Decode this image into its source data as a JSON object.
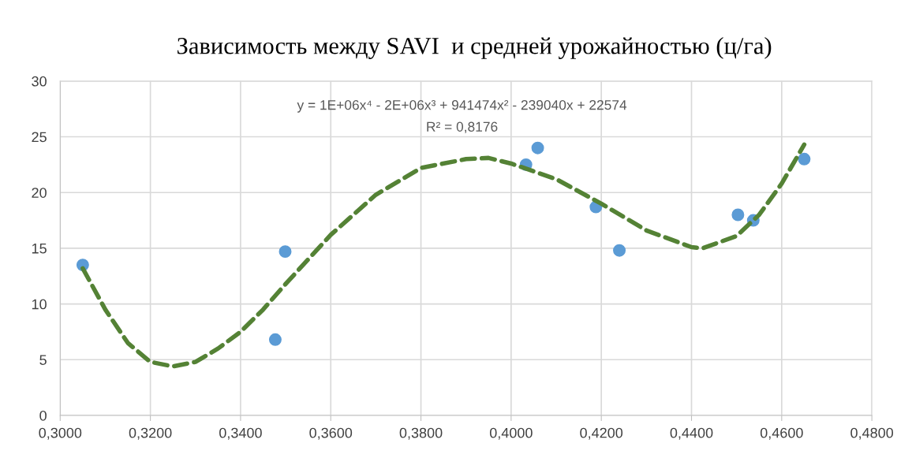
{
  "chart_data": {
    "type": "scatter",
    "title": "Зависимость между SAVI  и средней урожайностью (ц/га)",
    "annotations": [
      "y = 1E+06x⁴ - 2E+06x³ + 941474x² - 239040x + 22574",
      "R² = 0,8176"
    ],
    "series": [
      {
        "color": "#5b9bd5",
        "marker": "circle",
        "x": [
          0.305,
          0.3499,
          0.3477,
          0.4033,
          0.4059,
          0.4188,
          0.424,
          0.4503,
          0.4537,
          0.465
        ],
        "values": [
          13.5,
          14.7,
          6.8,
          22.5,
          24.0,
          18.7,
          14.8,
          18.0,
          17.5,
          23.0
        ]
      },
      {
        "type": "line",
        "color": "#548235",
        "line_style": "dashed",
        "x": [
          0.305,
          0.31,
          0.315,
          0.32,
          0.325,
          0.33,
          0.335,
          0.34,
          0.345,
          0.35,
          0.355,
          0.36,
          0.37,
          0.38,
          0.39,
          0.395,
          0.4,
          0.41,
          0.42,
          0.43,
          0.44,
          0.4425,
          0.45,
          0.455,
          0.46,
          0.465
        ],
        "values": [
          13.2,
          9.5,
          6.5,
          4.8,
          4.4,
          4.8,
          6.0,
          7.5,
          9.5,
          11.8,
          14.0,
          16.2,
          19.8,
          22.2,
          23.0,
          23.1,
          22.6,
          21.2,
          19.0,
          16.6,
          15.1,
          15.0,
          16.1,
          18.0,
          20.8,
          24.3
        ]
      }
    ],
    "xlim": [
      0.3,
      0.48
    ],
    "xticks": [
      {
        "value": 0.3,
        "label": "0,3000"
      },
      {
        "value": 0.32,
        "label": "0,3200"
      },
      {
        "value": 0.34,
        "label": "0,3400"
      },
      {
        "value": 0.36,
        "label": "0,3600"
      },
      {
        "value": 0.38,
        "label": "0,3800"
      },
      {
        "value": 0.4,
        "label": "0,4000"
      },
      {
        "value": 0.42,
        "label": "0,4200"
      },
      {
        "value": 0.44,
        "label": "0,4400"
      },
      {
        "value": 0.46,
        "label": "0,4600"
      },
      {
        "value": 0.48,
        "label": "0,4800"
      }
    ],
    "ylim": [
      0,
      30
    ],
    "yticks": [
      0,
      5,
      10,
      15,
      20,
      25,
      30
    ],
    "grid": true
  }
}
